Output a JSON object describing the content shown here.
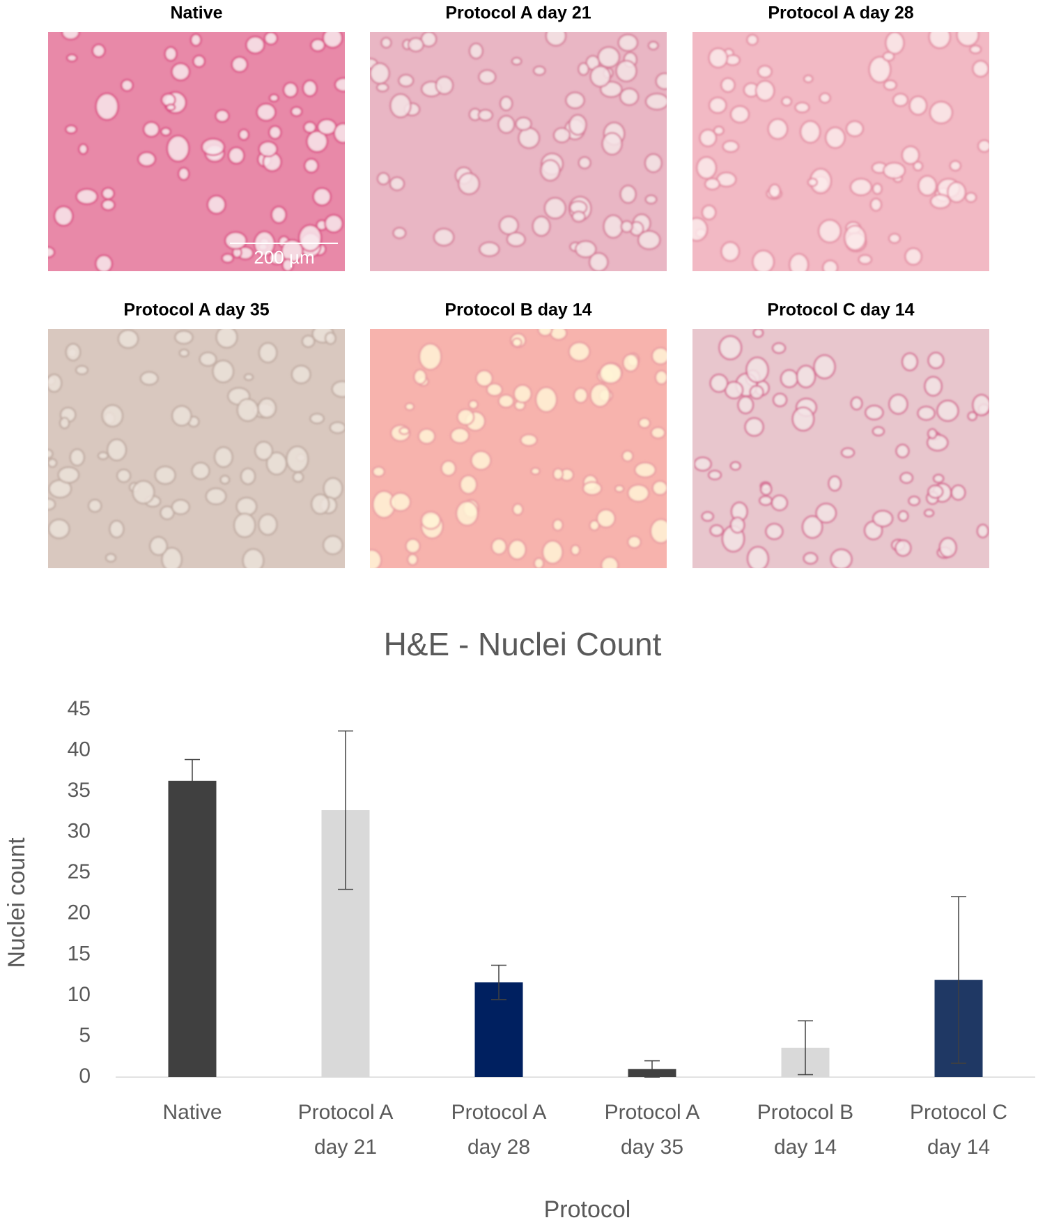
{
  "panels": [
    {
      "title": "Native"
    },
    {
      "title": "Protocol A day 21"
    },
    {
      "title": "Protocol A day 28"
    },
    {
      "title": "Protocol A day 35"
    },
    {
      "title": "Protocol B day 14"
    },
    {
      "title": "Protocol C day 14"
    }
  ],
  "scale_bar": "200 µm",
  "chart_data": {
    "type": "bar",
    "title": "H&E - Nuclei Count",
    "x_label": "Protocol",
    "y_label": "Nuclei count",
    "categories": [
      "Native",
      "Protocol A day 21",
      "Protocol A day 28",
      "Protocol A day 35",
      "Protocol B day 14",
      "Protocol C day 14"
    ],
    "values": [
      36.3,
      32.7,
      11.6,
      1.0,
      3.6,
      11.9
    ],
    "errors": [
      2.6,
      9.7,
      2.1,
      1.0,
      3.3,
      10.2
    ],
    "colors": [
      "#404040",
      "#d9d9d9",
      "#002060",
      "#404040",
      "#d9d9d9",
      "#1f3864"
    ],
    "ylim": [
      0,
      45
    ],
    "yticks": [
      0,
      5,
      10,
      15,
      20,
      25,
      30,
      35,
      40,
      45
    ],
    "grid": false
  }
}
